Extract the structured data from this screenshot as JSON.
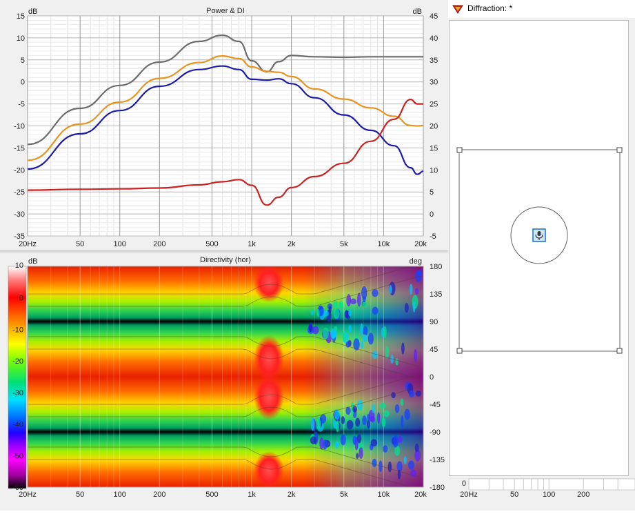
{
  "power_di": {
    "title": "Power & DI",
    "left_unit": "dB",
    "right_unit": "dB",
    "left_ticks": [
      "15",
      "10",
      "5",
      "0",
      "-5",
      "-10",
      "-15",
      "-20",
      "-25",
      "-30",
      "-35"
    ],
    "right_ticks": [
      "45",
      "40",
      "35",
      "30",
      "25",
      "20",
      "15",
      "10",
      "5",
      "0",
      "-5"
    ],
    "x_ticks": [
      "20Hz",
      "50",
      "100",
      "200",
      "500",
      "1k",
      "2k",
      "5k",
      "10k",
      "20k"
    ]
  },
  "directivity": {
    "title": "Directivity (hor)",
    "left_unit": "dB",
    "right_unit": "deg",
    "color_ticks": [
      "10",
      "0",
      "-10",
      "-20",
      "-30",
      "-40",
      "-50",
      "-60"
    ],
    "deg_ticks": [
      "180",
      "135",
      "90",
      "45",
      "0",
      "-45",
      "-90",
      "-135",
      "-180"
    ],
    "x_ticks": [
      "20Hz",
      "50",
      "100",
      "200",
      "500",
      "1k",
      "2k",
      "5k",
      "10k",
      "20k"
    ]
  },
  "diffraction": {
    "title": "Diffraction: *",
    "axis_ticks": [
      "20Hz",
      "50",
      "100",
      "200"
    ],
    "axis_zero": "0"
  },
  "chart_data": [
    {
      "type": "line",
      "title": "Power & DI",
      "xlabel": "",
      "ylabel": "dB",
      "x_scale": "log",
      "xlim": [
        20,
        20000
      ],
      "ylim": [
        -35,
        15
      ],
      "ylim_right": [
        -5,
        45
      ],
      "grid": true,
      "x": [
        20,
        50,
        100,
        200,
        400,
        600,
        800,
        1000,
        1300,
        1600,
        2000,
        3000,
        5000,
        8000,
        12000,
        16000,
        18000,
        20000
      ],
      "series": [
        {
          "color": "#6b6b6b",
          "values": [
            -14.2,
            -6.0,
            -0.8,
            4.5,
            9.2,
            10.6,
            9.2,
            4.8,
            2.3,
            4.6,
            6.0,
            5.7,
            5.6,
            5.7,
            5.7,
            5.7,
            5.7,
            5.7
          ]
        },
        {
          "color": "#e8931e",
          "values": [
            -17.8,
            -9.6,
            -4.6,
            0.8,
            4.4,
            5.9,
            5.3,
            3.4,
            2.4,
            2.2,
            1.2,
            -1.6,
            -3.9,
            -5.9,
            -7.8,
            -9.9,
            -10.0,
            -9.9
          ]
        },
        {
          "color": "#1a1aa6",
          "values": [
            -19.8,
            -11.8,
            -6.5,
            -1.0,
            2.8,
            3.6,
            2.8,
            0.6,
            0.4,
            0.7,
            -0.4,
            -3.6,
            -7.5,
            -11.0,
            -14.5,
            -19.5,
            -21.0,
            -20.3
          ]
        },
        {
          "color": "#cc2121",
          "axis": "right",
          "values": [
            5.4,
            5.6,
            5.7,
            5.9,
            6.6,
            7.3,
            7.8,
            6.5,
            2.0,
            3.8,
            6.0,
            8.5,
            11.5,
            16.5,
            21.5,
            26.0,
            25.0,
            25.0
          ]
        }
      ]
    }
  ],
  "colors": {
    "gray_curve": "#6b6b6b",
    "orange_curve": "#e8931e",
    "blue_curve": "#1a1aa6",
    "red_curve": "#cc2121"
  }
}
